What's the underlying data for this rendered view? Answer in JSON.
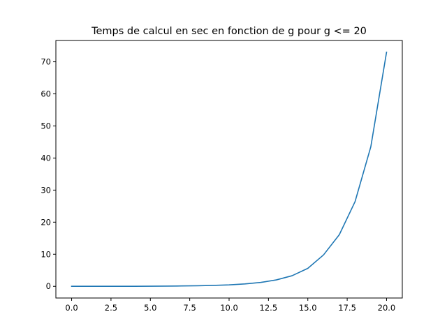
{
  "chart_data": {
    "type": "line",
    "title": "Temps de calcul en sec en fonction de g pour g <= 20",
    "xlabel": "",
    "ylabel": "",
    "xlim": [
      -1.0,
      21.0
    ],
    "ylim": [
      -3.65,
      76.65
    ],
    "grid": false,
    "x_ticks": [
      0.0,
      2.5,
      5.0,
      7.5,
      10.0,
      12.5,
      15.0,
      17.5,
      20.0
    ],
    "x_tick_labels": [
      "0.0",
      "2.5",
      "5.0",
      "7.5",
      "10.0",
      "12.5",
      "15.0",
      "17.5",
      "20.0"
    ],
    "y_ticks": [
      0,
      10,
      20,
      30,
      40,
      50,
      60,
      70
    ],
    "y_tick_labels": [
      "0",
      "10",
      "20",
      "30",
      "40",
      "50",
      "60",
      "70"
    ],
    "series": [
      {
        "color": "#1f77b4",
        "x": [
          0,
          1,
          2,
          3,
          4,
          5,
          6,
          7,
          8,
          9,
          10,
          11,
          12,
          13,
          14,
          15,
          16,
          17,
          18,
          19,
          20
        ],
        "y": [
          0.0,
          0.0,
          0.0,
          0.01,
          0.02,
          0.04,
          0.07,
          0.11,
          0.18,
          0.28,
          0.45,
          0.75,
          1.2,
          2.0,
          3.3,
          5.6,
          9.8,
          16.1,
          26.4,
          43.5,
          73.0
        ]
      }
    ]
  }
}
